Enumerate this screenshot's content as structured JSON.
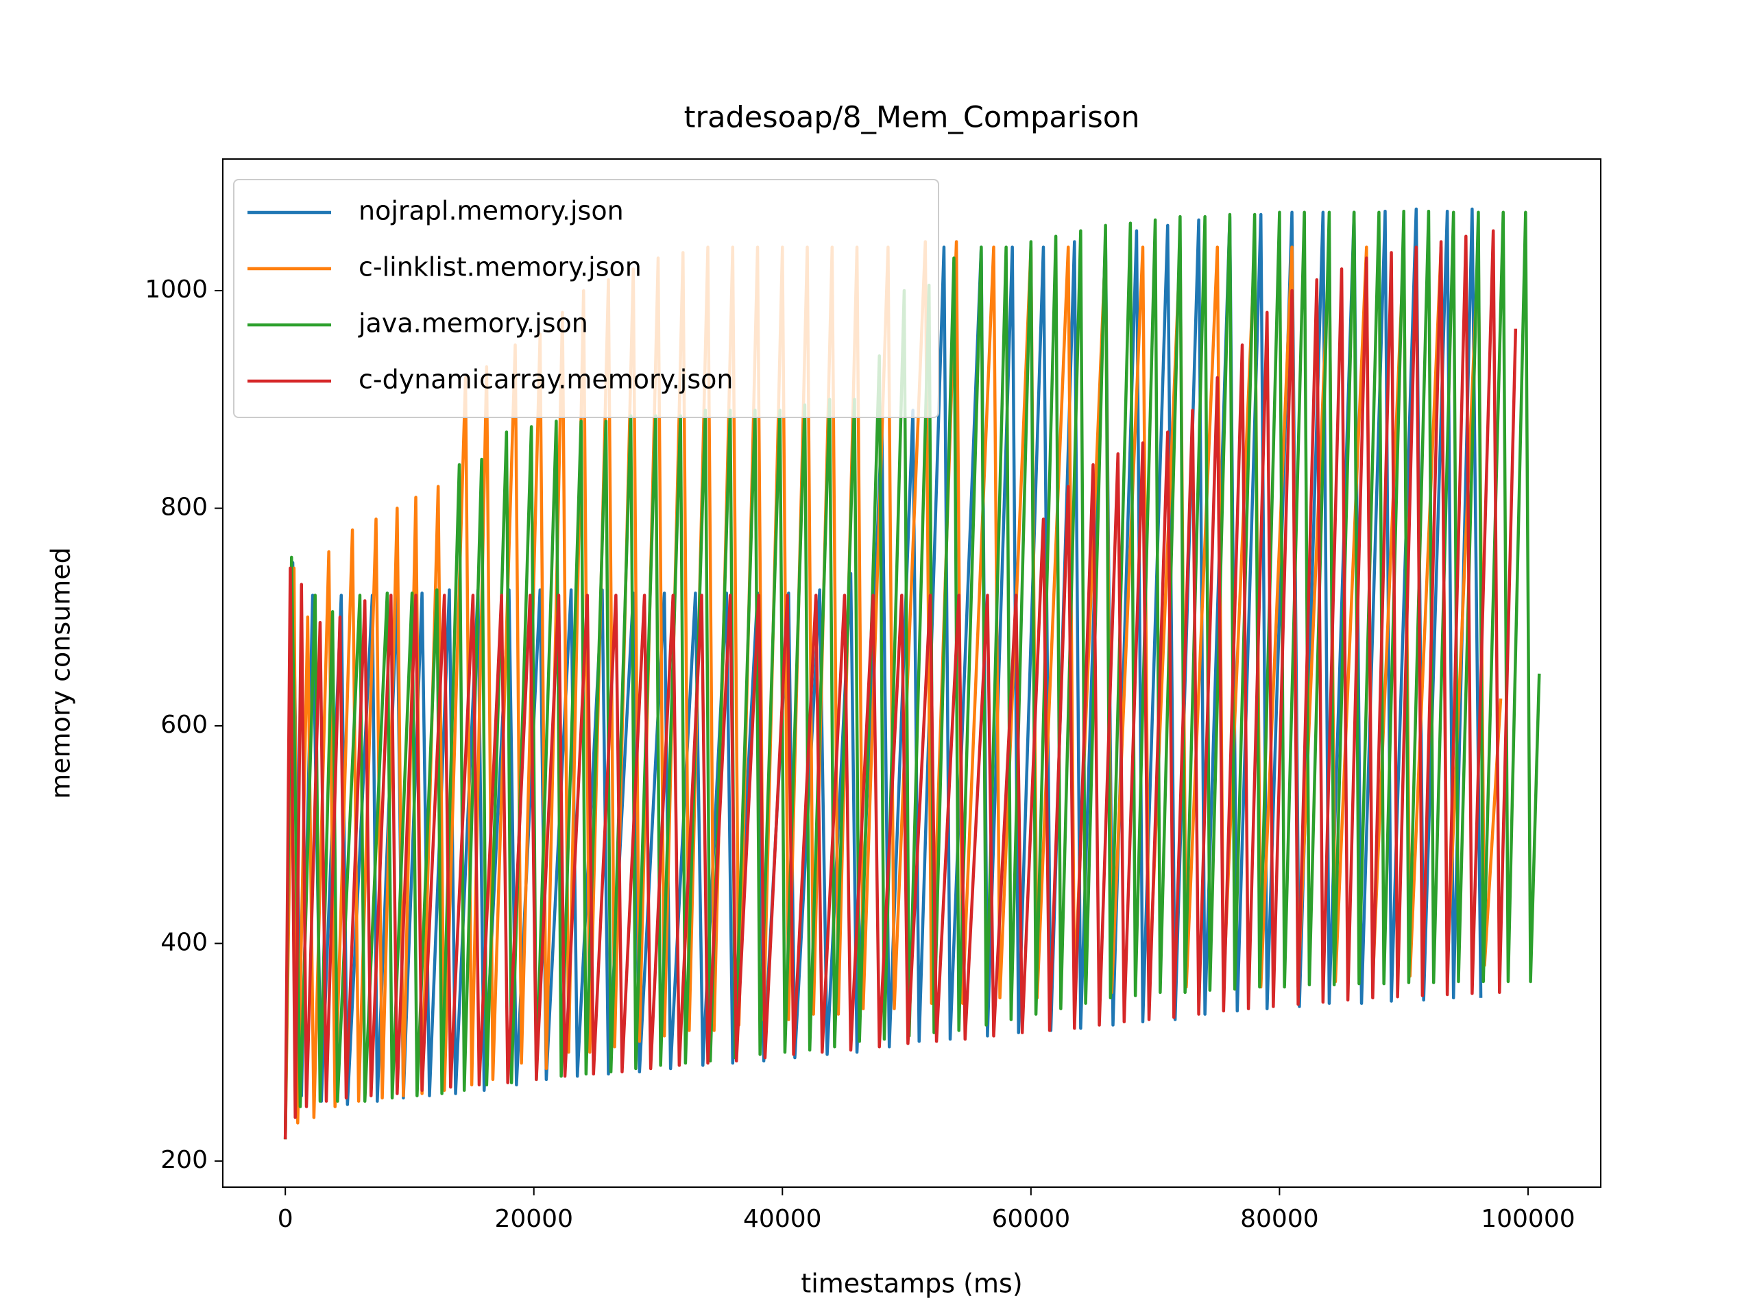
{
  "chart_data": {
    "type": "line",
    "title": "tradesoap/8_Mem_Comparison",
    "x_label": "timestamps (ms)",
    "y_label": "memory consumed",
    "xlim": [
      -5030,
      105850
    ],
    "ylim": [
      176,
      1121
    ],
    "xticks": [
      0,
      20000,
      40000,
      60000,
      80000,
      100000
    ],
    "yticks": [
      200,
      400,
      600,
      800,
      1000
    ],
    "legend": "upper left",
    "series": [
      {
        "name": "nojrapl.memory.json",
        "color": "#1f77b4",
        "x": [
          0,
          600,
          1300,
          2200,
          2900,
          4500,
          5000,
          7000,
          7400,
          9000,
          9500,
          11000,
          11600,
          13200,
          13700,
          15500,
          16000,
          18000,
          18600,
          20500,
          21000,
          23000,
          23500,
          25500,
          26000,
          28000,
          28500,
          30500,
          31000,
          33000,
          33600,
          35500,
          36000,
          38000,
          38500,
          40500,
          41000,
          43000,
          43600,
          45500,
          46000,
          48000,
          48600,
          50500,
          51000,
          53000,
          53500,
          56000,
          56500,
          58500,
          59000,
          61000,
          61600,
          63500,
          64000,
          66000,
          66600,
          68500,
          69000,
          71000,
          71600,
          73500,
          74000,
          76000,
          76600,
          78500,
          79000,
          81000,
          81600,
          83500,
          84000,
          86000,
          86600,
          88500,
          89000,
          91000,
          91600,
          93500,
          94000,
          95500,
          96200
        ],
        "values": [
          220,
          750,
          260,
          720,
          255,
          720,
          252,
          720,
          255,
          722,
          258,
          722,
          260,
          725,
          262,
          725,
          265,
          725,
          270,
          725,
          275,
          725,
          278,
          725,
          280,
          722,
          282,
          722,
          285,
          722,
          288,
          722,
          290,
          722,
          292,
          722,
          295,
          725,
          298,
          740,
          300,
          880,
          305,
          890,
          310,
          1040,
          312,
          1040,
          315,
          1040,
          318,
          1040,
          320,
          1045,
          322,
          1050,
          325,
          1055,
          328,
          1060,
          330,
          1065,
          335,
          1068,
          338,
          1070,
          340,
          1072,
          342,
          1072,
          345,
          1072,
          345,
          1073,
          347,
          1075,
          348,
          1073,
          350,
          1075,
          350
        ]
      },
      {
        "name": "c-linklist.memory.json",
        "color": "#ff7f0e",
        "x": [
          0,
          700,
          1000,
          1800,
          2300,
          3500,
          4000,
          5400,
          5900,
          7300,
          7800,
          9000,
          9500,
          10500,
          11000,
          12300,
          12800,
          14500,
          15000,
          16200,
          16700,
          18500,
          19000,
          20500,
          21000,
          22300,
          22800,
          24000,
          24500,
          26000,
          26500,
          28000,
          28500,
          30000,
          30500,
          32000,
          32500,
          34000,
          34500,
          36000,
          36500,
          38000,
          38500,
          40000,
          40500,
          42000,
          42500,
          44000,
          44500,
          46000,
          46500,
          48500,
          49000,
          51500,
          52000,
          54000,
          54500,
          57000,
          57500,
          60000,
          60500,
          63000,
          63500,
          66000,
          66500,
          69000,
          69500,
          72000,
          72500,
          75000,
          75500,
          78000,
          78500,
          81000,
          81500,
          84000,
          84500,
          87000,
          87500,
          90000,
          90500,
          93000,
          93500,
          96000,
          96500,
          97800
        ],
        "values": [
          220,
          745,
          235,
          700,
          240,
          760,
          250,
          780,
          255,
          790,
          258,
          800,
          260,
          810,
          262,
          820,
          265,
          920,
          270,
          930,
          275,
          950,
          290,
          960,
          285,
          980,
          300,
          1000,
          300,
          1010,
          305,
          1020,
          310,
          1030,
          315,
          1035,
          320,
          1040,
          320,
          1040,
          325,
          1040,
          330,
          1040,
          330,
          1040,
          335,
          1040,
          335,
          1040,
          340,
          1040,
          340,
          1045,
          345,
          1045,
          345,
          1040,
          350,
          1040,
          350,
          1040,
          355,
          1040,
          355,
          1040,
          355,
          1040,
          360,
          1040,
          360,
          1040,
          360,
          1040,
          360,
          1040,
          365,
          1040,
          365,
          1040,
          370,
          1040,
          375,
          1040,
          380,
          625
        ]
      },
      {
        "name": "java.memory.json",
        "color": "#2ca02c",
        "x": [
          0,
          500,
          1200,
          2400,
          2800,
          3800,
          4200,
          6000,
          6400,
          8200,
          8600,
          10200,
          10600,
          12200,
          12600,
          14000,
          14400,
          15800,
          16200,
          17800,
          18200,
          19800,
          20200,
          21800,
          22200,
          23800,
          24200,
          25800,
          26200,
          27800,
          28200,
          29800,
          30200,
          31800,
          32200,
          33800,
          34200,
          35800,
          36200,
          37800,
          38200,
          39800,
          40200,
          41800,
          42200,
          43800,
          44200,
          45800,
          46200,
          47800,
          48200,
          49800,
          50200,
          51800,
          52200,
          53800,
          54200,
          56000,
          56400,
          58000,
          58400,
          60000,
          60400,
          62000,
          62400,
          64000,
          64400,
          66000,
          66400,
          68000,
          68400,
          70000,
          70400,
          72000,
          72400,
          74000,
          74400,
          76000,
          76400,
          78000,
          78400,
          80000,
          80400,
          82000,
          82400,
          84000,
          84400,
          86000,
          86400,
          88000,
          88400,
          90000,
          90400,
          92000,
          92400,
          94000,
          94400,
          96000,
          96400,
          98000,
          98400,
          99800,
          100200,
          100900
        ],
        "values": [
          220,
          755,
          250,
          720,
          255,
          705,
          255,
          720,
          255,
          722,
          258,
          722,
          260,
          725,
          262,
          840,
          265,
          845,
          270,
          870,
          272,
          875,
          275,
          880,
          278,
          880,
          280,
          880,
          282,
          885,
          285,
          885,
          288,
          885,
          290,
          890,
          292,
          890,
          295,
          890,
          298,
          890,
          300,
          895,
          302,
          900,
          305,
          900,
          310,
          940,
          312,
          1000,
          315,
          1005,
          318,
          1030,
          320,
          1040,
          325,
          1040,
          330,
          1045,
          335,
          1050,
          340,
          1055,
          345,
          1060,
          350,
          1062,
          352,
          1065,
          355,
          1068,
          355,
          1068,
          357,
          1070,
          358,
          1070,
          360,
          1072,
          360,
          1072,
          362,
          1072,
          362,
          1072,
          363,
          1072,
          363,
          1073,
          364,
          1073,
          364,
          1072,
          365,
          1072,
          365,
          1072,
          365,
          1072,
          365,
          648
        ]
      },
      {
        "name": "c-dynamicarray.memory.json",
        "color": "#d62728",
        "x": [
          0,
          400,
          800,
          1300,
          1700,
          2800,
          3300,
          4400,
          4900,
          6400,
          6900,
          8500,
          9000,
          10500,
          11000,
          12800,
          13300,
          15100,
          15600,
          17400,
          17900,
          19700,
          20200,
          22000,
          22500,
          24300,
          24800,
          26600,
          27100,
          28900,
          29400,
          31200,
          31700,
          33500,
          34000,
          35800,
          36300,
          38100,
          38600,
          40400,
          40900,
          42700,
          43200,
          45000,
          45500,
          47300,
          47800,
          49600,
          50100,
          51900,
          52400,
          54200,
          54700,
          56500,
          57000,
          58800,
          59300,
          61000,
          61500,
          63000,
          63500,
          65000,
          65500,
          67000,
          67500,
          69000,
          69500,
          71000,
          71500,
          73000,
          73500,
          75000,
          75500,
          77000,
          77500,
          79000,
          79500,
          81000,
          81500,
          83000,
          83500,
          85000,
          85500,
          87000,
          87500,
          89000,
          89500,
          91000,
          91500,
          93000,
          93500,
          95000,
          95500,
          97200,
          97700,
          99000
        ],
        "values": [
          220,
          745,
          240,
          730,
          250,
          695,
          255,
          700,
          258,
          715,
          260,
          720,
          262,
          720,
          265,
          720,
          268,
          720,
          270,
          720,
          272,
          720,
          275,
          720,
          278,
          720,
          280,
          720,
          282,
          720,
          285,
          720,
          288,
          720,
          290,
          720,
          292,
          720,
          295,
          720,
          298,
          720,
          300,
          720,
          302,
          720,
          305,
          720,
          308,
          720,
          310,
          720,
          312,
          720,
          315,
          720,
          318,
          790,
          320,
          820,
          322,
          840,
          325,
          850,
          328,
          860,
          330,
          870,
          332,
          890,
          335,
          920,
          338,
          950,
          340,
          980,
          342,
          1000,
          344,
          1010,
          346,
          1020,
          348,
          1030,
          350,
          1035,
          351,
          1040,
          352,
          1045,
          353,
          1050,
          354,
          1055,
          355,
          965
        ]
      }
    ]
  }
}
